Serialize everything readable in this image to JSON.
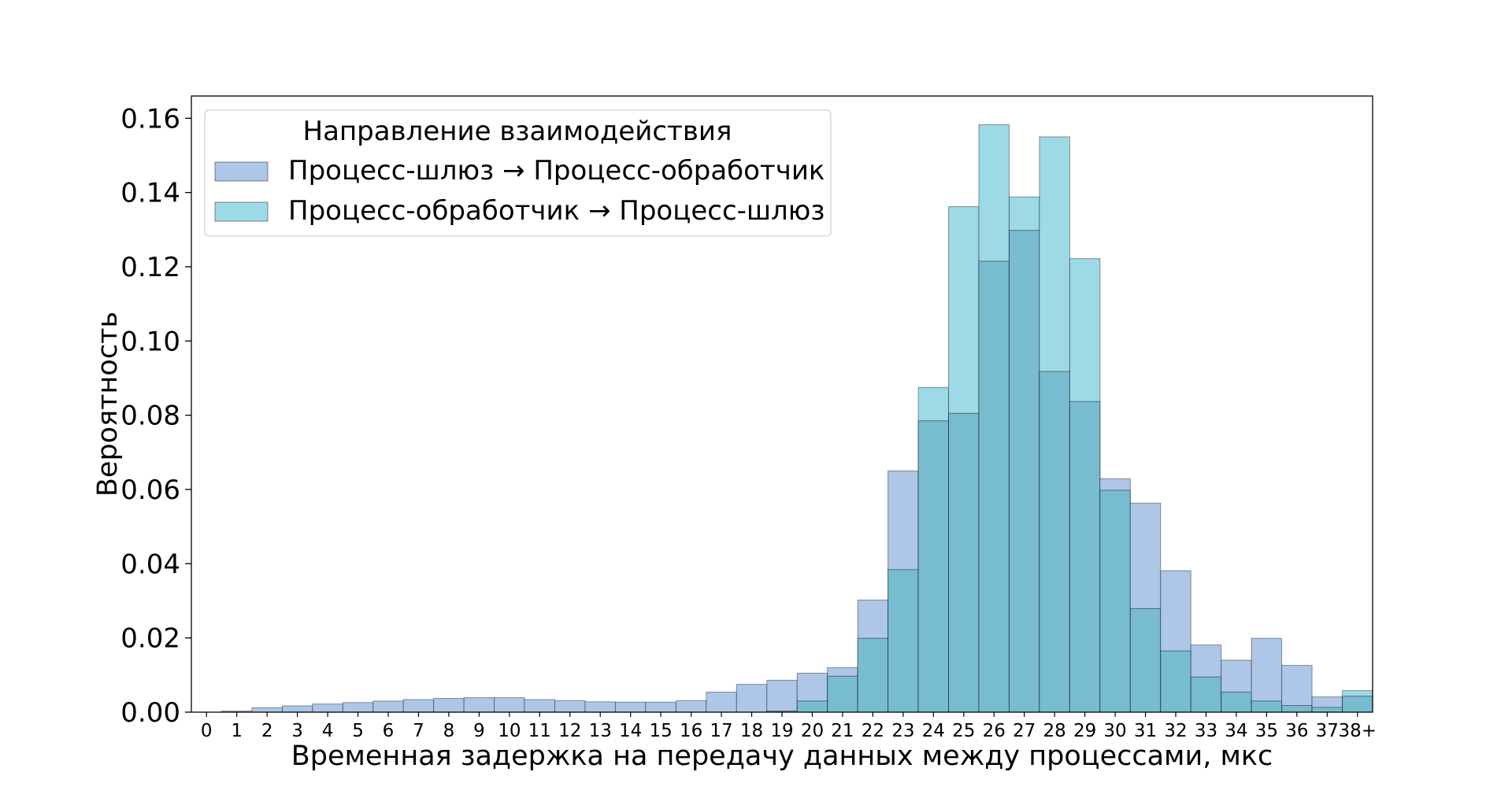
{
  "chart_data": {
    "type": "bar",
    "title": "",
    "xlabel": "Временная задержка на передачу данных между процессами, мкс",
    "ylabel": "Вероятность",
    "ylim": [
      0,
      0.166
    ],
    "yticks": [
      "0.00",
      "0.02",
      "0.04",
      "0.06",
      "0.08",
      "0.10",
      "0.12",
      "0.14",
      "0.16"
    ],
    "ytick_values": [
      0,
      0.02,
      0.04,
      0.06,
      0.08,
      0.1,
      0.12,
      0.14,
      0.16
    ],
    "categories": [
      "0",
      "1",
      "2",
      "3",
      "4",
      "5",
      "6",
      "7",
      "8",
      "9",
      "10",
      "11",
      "12",
      "13",
      "14",
      "15",
      "16",
      "17",
      "18",
      "19",
      "20",
      "21",
      "22",
      "23",
      "24",
      "25",
      "26",
      "27",
      "28",
      "29",
      "30",
      "31",
      "32",
      "33",
      "34",
      "35",
      "36",
      "37",
      "38+"
    ],
    "legend": {
      "title": "Направление взаимодействия",
      "placement": "upper-left"
    },
    "grid": false,
    "series": [
      {
        "name": "Процесс-шлюз → Процесс-обработчик",
        "color": "#aec7e8",
        "values": [
          0.0,
          0.0003,
          0.0012,
          0.0017,
          0.0022,
          0.0026,
          0.003,
          0.0034,
          0.0037,
          0.0039,
          0.0039,
          0.0034,
          0.0031,
          0.0028,
          0.0027,
          0.0027,
          0.0031,
          0.0054,
          0.0075,
          0.0086,
          0.0105,
          0.012,
          0.0302,
          0.065,
          0.0785,
          0.0805,
          0.1215,
          0.1298,
          0.0918,
          0.0837,
          0.0629,
          0.0563,
          0.0381,
          0.0181,
          0.014,
          0.0199,
          0.0126,
          0.0041,
          0.0043
        ]
      },
      {
        "name": "Процесс-обработчик → Процесс-шлюз",
        "color": "#9edae5",
        "values": [
          0.0,
          0.0,
          0.0,
          0.0,
          0.0,
          0.0,
          0.0,
          0.0,
          0.0,
          0.0,
          0.0,
          0.0,
          0.0,
          0.0,
          0.0,
          0.0,
          0.0,
          0.0,
          0.0,
          0.0003,
          0.003,
          0.0097,
          0.0199,
          0.0384,
          0.0875,
          0.1362,
          0.1583,
          0.1388,
          0.155,
          0.1222,
          0.0598,
          0.0279,
          0.0165,
          0.0095,
          0.0054,
          0.003,
          0.0018,
          0.0013,
          0.0058
        ]
      }
    ],
    "overlap_color": "#78bcd0"
  }
}
